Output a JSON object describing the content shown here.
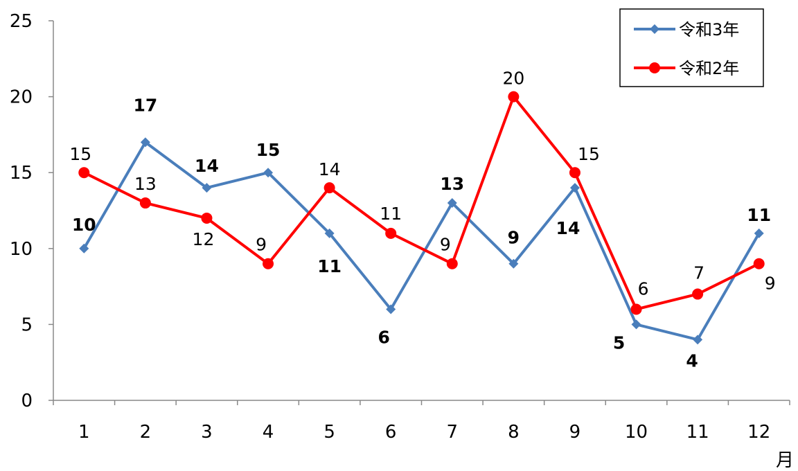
{
  "chart_data": {
    "type": "line",
    "categories": [
      "1",
      "2",
      "3",
      "4",
      "5",
      "6",
      "7",
      "8",
      "9",
      "10",
      "11",
      "12"
    ],
    "x_unit": "月",
    "ylim": [
      0,
      25
    ],
    "yticks": [
      0,
      5,
      10,
      15,
      20,
      25
    ],
    "grid": false,
    "legend_position": "top-right",
    "series": [
      {
        "name": "令和3年",
        "values": [
          10,
          17,
          14,
          15,
          11,
          6,
          13,
          9,
          14,
          5,
          4,
          11
        ],
        "color": "#4a7ebb",
        "marker": "diamond",
        "label_weight": "bold"
      },
      {
        "name": "令和2年",
        "values": [
          15,
          13,
          12,
          9,
          14,
          11,
          9,
          20,
          15,
          6,
          7,
          9
        ],
        "color": "#ff0000",
        "marker": "circle",
        "label_weight": "normal"
      }
    ]
  }
}
